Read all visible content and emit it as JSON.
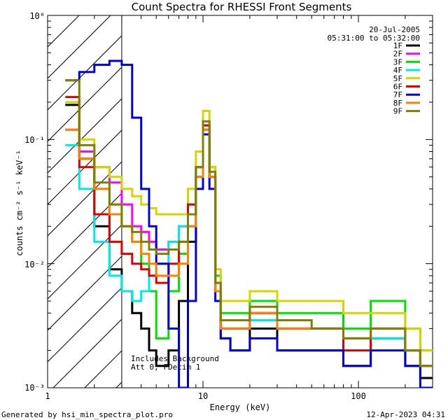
{
  "chart_data": {
    "type": "line",
    "title": "Count Spectra for RHESSI Front Segments",
    "xlabel": "Energy (keV)",
    "ylabel": "counts cm⁻² s⁻¹ keV⁻¹",
    "xscale": "log",
    "yscale": "log",
    "xlim": [
      1,
      300
    ],
    "ylim": [
      0.001,
      1
    ],
    "x_tick_labels": [
      "1",
      "10",
      "100"
    ],
    "y_tick_labels": [
      "10⁰",
      "10⁻¹",
      "10⁻²",
      "10⁻³"
    ],
    "legend_position": "top-right",
    "header": {
      "date": "20-Jul-2005",
      "time_range": "05:31:00 to 05:32:00"
    },
    "annotations": [
      "Includes Background",
      "Att 0, FDecim 1"
    ],
    "shaded_region": {
      "x_min": 1,
      "x_max": 3,
      "style": "diagonal hatch"
    },
    "footer_left": "Generated by hsi_min_spectra_plot.pro",
    "footer_right": "12-Apr-2023 04:31",
    "energy_bins": [
      1.3,
      1.6,
      2.0,
      2.5,
      3.0,
      3.5,
      4.0,
      4.5,
      5.0,
      6.0,
      7.0,
      8.0,
      9.0,
      10.0,
      11.0,
      12.0,
      13.0,
      15.0,
      20.0,
      30.0,
      50.0,
      80.0,
      120.0,
      200.0,
      250.0
    ],
    "series": [
      {
        "name": "1F",
        "color": "#000000",
        "values": [
          0.19,
          0.07,
          0.02,
          0.009,
          0.006,
          0.004,
          0.003,
          0.002,
          0.0015,
          0.002,
          0.005,
          0.015,
          0.05,
          0.12,
          0.05,
          0.006,
          0.0025,
          0.002,
          0.003,
          0.002,
          0.002,
          0.0015,
          0.0025,
          0.0015,
          0.0012
        ]
      },
      {
        "name": "2F",
        "color": "#ff00ff",
        "values": [
          0.12,
          0.08,
          0.06,
          0.045,
          0.03,
          0.02,
          0.018,
          0.015,
          0.013,
          0.015,
          0.02,
          0.03,
          0.06,
          0.13,
          0.05,
          0.007,
          0.003,
          0.003,
          0.004,
          0.003,
          0.003,
          0.0025,
          0.003,
          0.002,
          0.0015
        ]
      },
      {
        "name": "3F",
        "color": "#00e000",
        "values": [
          0.2,
          0.07,
          0.04,
          0.03,
          0.02,
          0.015,
          0.01,
          0.006,
          0.0025,
          0.006,
          0.012,
          0.02,
          0.05,
          0.12,
          0.06,
          0.008,
          0.004,
          0.004,
          0.005,
          0.004,
          0.004,
          0.003,
          0.005,
          0.003,
          0.002
        ]
      },
      {
        "name": "4F",
        "color": "#00e8e8",
        "values": [
          0.09,
          0.04,
          0.015,
          0.008,
          0.006,
          0.005,
          0.006,
          0.008,
          0.01,
          0.015,
          0.02,
          0.03,
          0.06,
          0.12,
          0.05,
          0.006,
          0.003,
          0.003,
          0.0035,
          0.003,
          0.003,
          0.002,
          0.0025,
          0.002,
          0.0015
        ]
      },
      {
        "name": "5F",
        "color": "#d4d400",
        "values": [
          0.2,
          0.1,
          0.06,
          0.05,
          0.04,
          0.035,
          0.03,
          0.028,
          0.025,
          0.025,
          0.025,
          0.04,
          0.08,
          0.17,
          0.06,
          0.009,
          0.005,
          0.005,
          0.006,
          0.005,
          0.005,
          0.004,
          0.004,
          0.003,
          0.002
        ]
      },
      {
        "name": "6F",
        "color": "#e00000",
        "values": [
          0.22,
          0.06,
          0.025,
          0.015,
          0.012,
          0.01,
          0.009,
          0.008,
          0.007,
          0.01,
          0.015,
          0.03,
          0.06,
          0.13,
          0.05,
          0.006,
          0.003,
          0.003,
          0.004,
          0.003,
          0.003,
          0.002,
          0.003,
          0.002,
          0.0015
        ]
      },
      {
        "name": "7F",
        "color": "#0000dd",
        "values": [
          0.3,
          0.35,
          0.4,
          0.43,
          0.4,
          0.15,
          0.04,
          0.02,
          0.01,
          0.003,
          0.001,
          0.005,
          0.04,
          0.11,
          0.04,
          0.005,
          0.0025,
          0.002,
          0.0025,
          0.002,
          0.002,
          0.0015,
          0.002,
          0.0015,
          0.001
        ]
      },
      {
        "name": "8F",
        "color": "#ff8000",
        "values": [
          0.12,
          0.07,
          0.04,
          0.025,
          0.02,
          0.015,
          0.012,
          0.01,
          0.008,
          0.008,
          0.01,
          0.02,
          0.05,
          0.12,
          0.05,
          0.006,
          0.003,
          0.003,
          0.004,
          0.003,
          0.003,
          0.0025,
          0.003,
          0.002,
          0.0015
        ]
      },
      {
        "name": "9F",
        "color": "#808000",
        "values": [
          0.3,
          0.09,
          0.045,
          0.03,
          0.02,
          0.018,
          0.015,
          0.013,
          0.012,
          0.013,
          0.015,
          0.025,
          0.06,
          0.14,
          0.055,
          0.007,
          0.0035,
          0.0035,
          0.0045,
          0.0035,
          0.003,
          0.0025,
          0.003,
          0.002,
          0.0015
        ]
      }
    ]
  }
}
